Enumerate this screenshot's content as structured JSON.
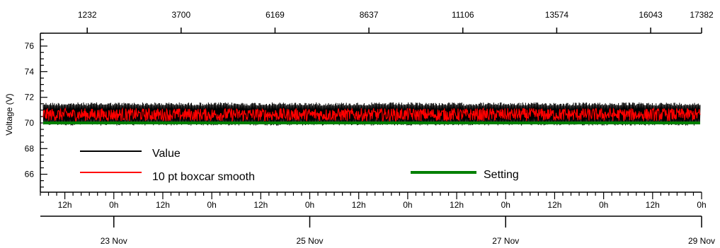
{
  "chart_data": {
    "type": "line",
    "ylabel": "Voltage (V)",
    "ylim": [
      64.6,
      77.0
    ],
    "y_ticks": [
      66,
      68,
      70,
      72,
      74,
      76
    ],
    "top_axis": {
      "ticks": [
        "1232",
        "3700",
        "6169",
        "8637",
        "11106",
        "13574",
        "16043",
        "17382"
      ],
      "range": [
        0,
        17382
      ]
    },
    "x_time_axis": {
      "start": "2023-11-22T06:00",
      "end": "2023-11-29T00:00",
      "hour_labels": [
        "12h",
        "0h",
        "12h",
        "0h",
        "12h",
        "0h",
        "12h",
        "0h",
        "12h",
        "0h",
        "12h",
        "0h",
        "12h",
        "0h"
      ],
      "hour_label_times": [
        "2023-11-22T12:00",
        "2023-11-23T00:00",
        "2023-11-23T12:00",
        "2023-11-24T00:00",
        "2023-11-24T12:00",
        "2023-11-25T00:00",
        "2023-11-25T12:00",
        "2023-11-26T00:00",
        "2023-11-26T12:00",
        "2023-11-27T00:00",
        "2023-11-27T12:00",
        "2023-11-28T00:00",
        "2023-11-28T12:00",
        "2023-11-29T00:00"
      ],
      "day_labels": [
        "23 Nov",
        "25 Nov",
        "27 Nov",
        "29 Nov"
      ],
      "day_label_times": [
        "2023-11-23T00:00",
        "2023-11-25T00:00",
        "2023-11-27T00:00",
        "2023-11-29T00:00"
      ]
    },
    "series": [
      {
        "name": "Value",
        "color": "#000000",
        "band": [
          69.8,
          71.6
        ]
      },
      {
        "name": "10 pt boxcar smooth",
        "color": "#ff0000",
        "band": [
          70.1,
          71.2
        ]
      },
      {
        "name": "Setting",
        "color": "#008000",
        "value": 70.0
      }
    ],
    "grid": false,
    "legend_placement": "bottom-left"
  }
}
